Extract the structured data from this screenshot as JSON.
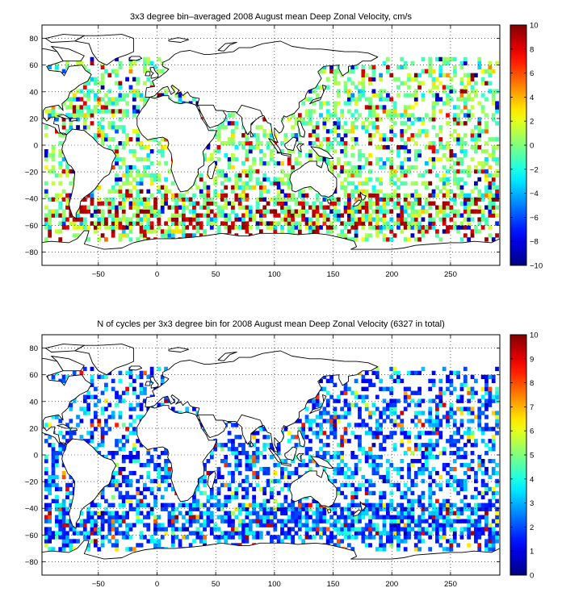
{
  "chart_data": [
    {
      "type": "heatmap",
      "title": "3x3 degree bin–averaged 2008 August mean Deep Zonal Velocity, cm/s",
      "xlabel": "",
      "ylabel": "",
      "xlim": [
        -98,
        292
      ],
      "ylim": [
        -90,
        90
      ],
      "x_ticks": [
        -50,
        0,
        50,
        100,
        150,
        200,
        250
      ],
      "y_ticks": [
        -80,
        -60,
        -40,
        -20,
        0,
        20,
        40,
        60,
        80
      ],
      "grid": true,
      "bin_size_deg": 3,
      "colorbar": {
        "min": -10,
        "max": 10,
        "ticks": [
          -10,
          -8,
          -6,
          -4,
          -2,
          0,
          2,
          4,
          6,
          8,
          10
        ],
        "colormap": "jet"
      }
    },
    {
      "type": "heatmap",
      "title": "N of cycles per 3x3 degree bin for 2008 August mean Deep Zonal Velocity (6327 in total)",
      "xlabel": "",
      "ylabel": "",
      "xlim": [
        -98,
        292
      ],
      "ylim": [
        -90,
        90
      ],
      "x_ticks": [
        -50,
        0,
        50,
        100,
        150,
        200,
        250
      ],
      "y_ticks": [
        -80,
        -60,
        -40,
        -20,
        0,
        20,
        40,
        60,
        80
      ],
      "grid": true,
      "bin_size_deg": 3,
      "colorbar": {
        "min": 0,
        "max": 10,
        "ticks": [
          0,
          1,
          2,
          3,
          4,
          5,
          6,
          7,
          8,
          9,
          10
        ],
        "colormap": "jet"
      }
    }
  ]
}
